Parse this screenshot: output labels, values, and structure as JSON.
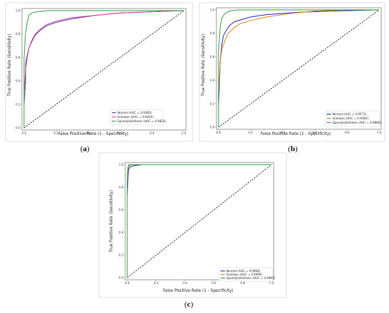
{
  "chart_data": [
    {
      "type": "line",
      "panel_label": "(a)",
      "xlabel": "False Positive Rate (1 - Specificity)",
      "ylabel": "True Positive Rate (Sensitivity)",
      "xlim": [
        0,
        1
      ],
      "ylim": [
        0,
        1
      ],
      "xticks": [
        "0.0",
        "0.2",
        "0.4",
        "0.6",
        "0.8",
        "1.0"
      ],
      "yticks": [
        "0.0",
        "0.2",
        "0.4",
        "0.6",
        "0.8",
        "1.0"
      ],
      "grid": false,
      "legend": "bottom-right",
      "series": [
        {
          "name": "Normal (AUC = 0.9360)",
          "color": "#4b3fa8",
          "x": [
            0,
            0,
            0.01,
            0.01,
            0.02,
            0.03,
            0.05,
            0.07,
            0.1,
            0.14,
            0.2,
            0.3,
            0.45,
            0.6,
            0.8,
            1.0
          ],
          "y": [
            0,
            0.2,
            0.4,
            0.55,
            0.62,
            0.68,
            0.74,
            0.79,
            0.83,
            0.87,
            0.9,
            0.93,
            0.96,
            0.98,
            0.99,
            1.0
          ]
        },
        {
          "name": "Scoliosis (AUC = 0.9442)",
          "color": "#d43f8d",
          "x": [
            0,
            0,
            0.01,
            0.02,
            0.03,
            0.05,
            0.07,
            0.1,
            0.14,
            0.2,
            0.3,
            0.45,
            0.6,
            0.8,
            1.0
          ],
          "y": [
            0,
            0.3,
            0.5,
            0.6,
            0.68,
            0.75,
            0.8,
            0.84,
            0.88,
            0.91,
            0.94,
            0.96,
            0.98,
            0.99,
            1.0
          ]
        },
        {
          "name": "Spondylolisthesis (AUC = 0.9831)",
          "color": "#2e9e3a",
          "x": [
            0,
            0,
            0.01,
            0.02,
            0.03,
            0.05,
            0.08,
            0.15,
            0.3,
            0.6,
            0.8,
            1.0
          ],
          "y": [
            0,
            0.6,
            0.82,
            0.9,
            0.96,
            0.98,
            0.99,
            1.0,
            1.0,
            1.0,
            1.0,
            1.0
          ]
        },
        {
          "name": "",
          "color": "#000000",
          "dashed": true,
          "x": [
            0,
            1
          ],
          "y": [
            0,
            1
          ]
        }
      ]
    },
    {
      "type": "line",
      "panel_label": "(b)",
      "xlabel": "False Positive Rate (1 - Specificity)",
      "ylabel": "True Positive Rate (Sensitivity)",
      "xlim": [
        0,
        1
      ],
      "ylim": [
        0,
        1
      ],
      "xticks": [
        "0.0",
        "0.2",
        "0.4",
        "0.6",
        "0.8",
        "1.0"
      ],
      "yticks": [
        "0.0",
        "0.2",
        "0.4",
        "0.6",
        "0.8",
        "1.0"
      ],
      "grid": false,
      "legend": "bottom-right",
      "series": [
        {
          "name": "Normal (AUC = 0.9571)",
          "color": "#2323b8",
          "x": [
            0,
            0,
            0.01,
            0.02,
            0.03,
            0.05,
            0.07,
            0.1,
            0.15,
            0.2,
            0.3,
            0.5,
            0.7,
            1.0
          ],
          "y": [
            0,
            0.18,
            0.55,
            0.7,
            0.78,
            0.83,
            0.87,
            0.9,
            0.92,
            0.94,
            0.96,
            0.98,
            0.99,
            1.0
          ]
        },
        {
          "name": "Scoliosis (AUC = 0.9483)",
          "color": "#e07b1a",
          "x": [
            0,
            0,
            0.01,
            0.02,
            0.04,
            0.06,
            0.09,
            0.13,
            0.2,
            0.3,
            0.45,
            0.6,
            0.8,
            1.0
          ],
          "y": [
            0,
            0.3,
            0.55,
            0.66,
            0.74,
            0.8,
            0.84,
            0.88,
            0.91,
            0.94,
            0.97,
            0.99,
            1.0,
            1.0
          ]
        },
        {
          "name": "Spondylolisthesis (AUC = 0.9883)",
          "color": "#2e9e3a",
          "x": [
            0,
            0,
            0.01,
            0.02,
            0.04,
            0.07,
            0.12,
            0.2,
            0.4,
            0.7,
            1.0
          ],
          "y": [
            0,
            0.65,
            0.85,
            0.93,
            0.97,
            0.99,
            1.0,
            1.0,
            1.0,
            1.0,
            1.0
          ]
        },
        {
          "name": "",
          "color": "#000000",
          "dashed": true,
          "x": [
            0,
            1
          ],
          "y": [
            0,
            1
          ]
        }
      ]
    },
    {
      "type": "line",
      "panel_label": "(c)",
      "xlabel": "False Positive Rate (1 - Specificity)",
      "ylabel": "True Positive Rate (Sensitivity)",
      "xlim": [
        0,
        1
      ],
      "ylim": [
        0,
        1
      ],
      "xticks": [
        "0.0",
        "0.2",
        "0.4",
        "0.6",
        "0.8",
        "1.0"
      ],
      "yticks": [
        "0.0",
        "0.2",
        "0.4",
        "0.6",
        "0.8",
        "1.0"
      ],
      "grid": false,
      "legend": "bottom-right",
      "series": [
        {
          "name": "Normal (AUC = 0.9984)",
          "color": "#2323b8",
          "x": [
            0,
            0,
            0.005,
            0.01,
            0.02,
            0.04,
            0.1,
            1.0
          ],
          "y": [
            0,
            0.72,
            0.9,
            0.96,
            0.98,
            0.99,
            1.0,
            1.0
          ]
        },
        {
          "name": "Scoliosis (AUC = 0.9995)",
          "color": "#e07b1a",
          "x": [
            0,
            0,
            0.005,
            0.01,
            0.03,
            0.1,
            1.0
          ],
          "y": [
            0,
            0.85,
            0.95,
            0.99,
            1.0,
            1.0,
            1.0
          ]
        },
        {
          "name": "Spondylolisthesis (AUC = 0.9987)",
          "color": "#2e9e3a",
          "x": [
            0,
            0,
            0.005,
            0.01,
            0.02,
            1.0
          ],
          "y": [
            0,
            0.9,
            0.98,
            1.0,
            1.0,
            1.0
          ]
        },
        {
          "name": "",
          "color": "#000000",
          "dashed": true,
          "x": [
            0,
            1
          ],
          "y": [
            0,
            1
          ]
        }
      ]
    }
  ]
}
